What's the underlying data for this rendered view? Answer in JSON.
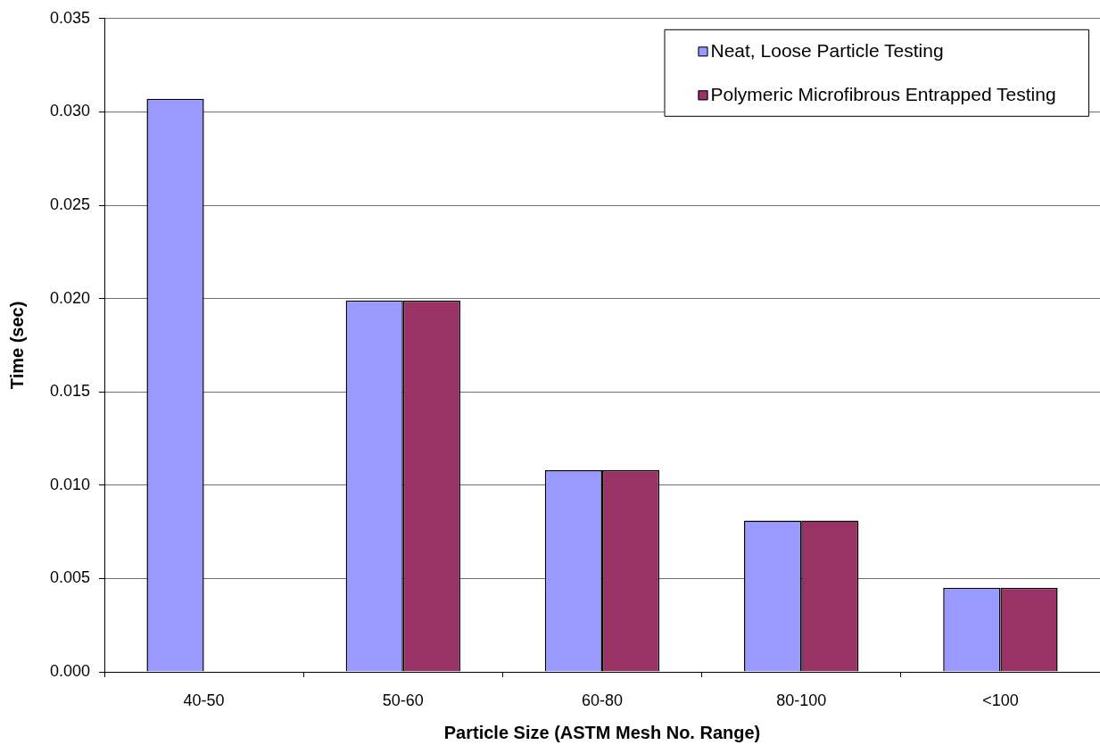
{
  "chart_data": {
    "type": "bar",
    "xlabel": "Particle Size (ASTM Mesh No. Range)",
    "ylabel": "Time (sec)",
    "categories": [
      "40-50",
      "50-60",
      "60-80",
      "80-100",
      "<100"
    ],
    "series": [
      {
        "name": "Neat, Loose Particle Testing",
        "color": "#9999ff",
        "values": [
          0.0307,
          0.0199,
          0.0108,
          0.0081,
          0.0045
        ]
      },
      {
        "name": "Polymeric Microfibrous Entrapped Testing",
        "color": "#993366",
        "values": [
          null,
          0.0199,
          0.0108,
          0.0081,
          0.0045
        ]
      }
    ],
    "ylim": [
      0,
      0.035
    ],
    "yticks": [
      {
        "value": 0,
        "label": "0.000"
      },
      {
        "value": 0.005,
        "label": "0.005"
      },
      {
        "value": 0.01,
        "label": "0.010"
      },
      {
        "value": 0.015,
        "label": "0.015"
      },
      {
        "value": 0.02,
        "label": "0.020"
      },
      {
        "value": 0.025,
        "label": "0.025"
      },
      {
        "value": 0.03,
        "label": "0.030"
      },
      {
        "value": 0.035,
        "label": "0.035"
      }
    ],
    "grid": "y",
    "legend": "top right"
  }
}
